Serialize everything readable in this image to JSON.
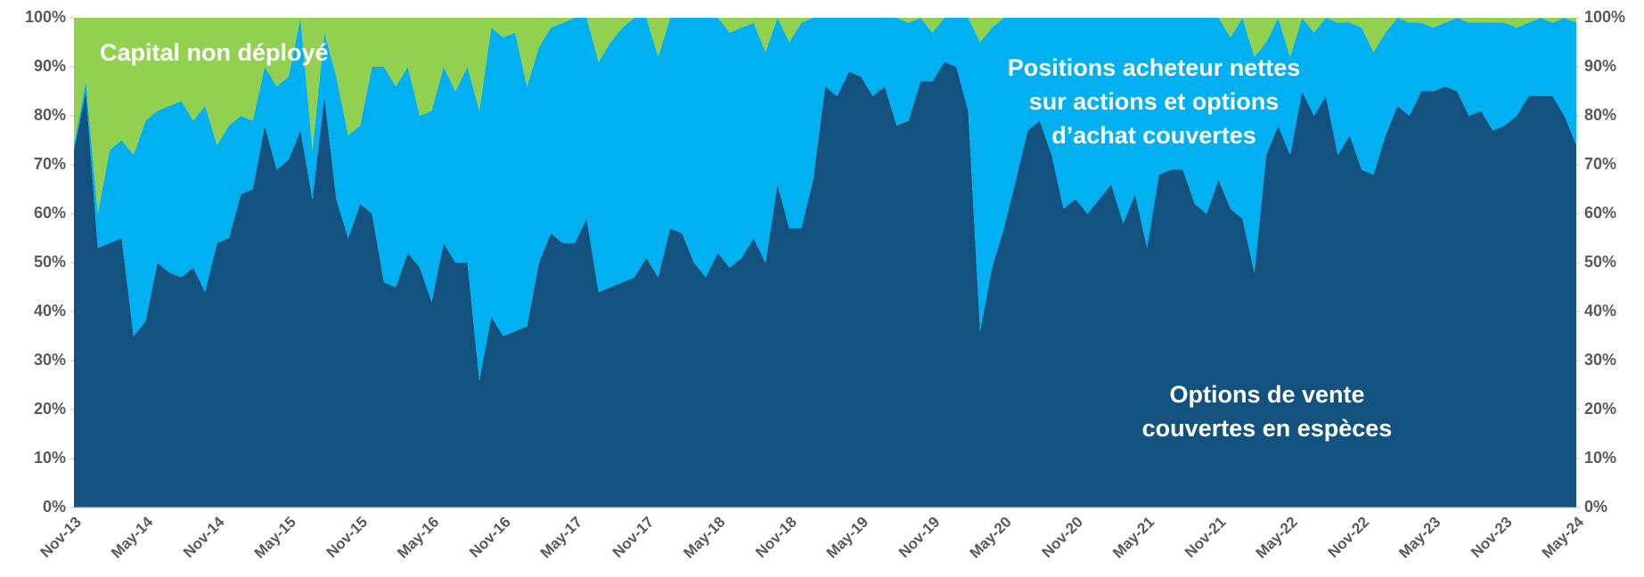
{
  "chart_data": {
    "type": "area",
    "stacked": true,
    "categories": [
      "Nov-13",
      null,
      null,
      null,
      null,
      null,
      "May-14",
      null,
      null,
      null,
      null,
      null,
      "Nov-14",
      null,
      null,
      null,
      null,
      null,
      "May-15",
      null,
      null,
      null,
      null,
      null,
      "Nov-15",
      null,
      null,
      null,
      null,
      null,
      "May-16",
      null,
      null,
      null,
      null,
      null,
      "Nov-16",
      null,
      null,
      null,
      null,
      null,
      "May-17",
      null,
      null,
      null,
      null,
      null,
      "Nov-17",
      null,
      null,
      null,
      null,
      null,
      "May-18",
      null,
      null,
      null,
      null,
      null,
      "Nov-18",
      null,
      null,
      null,
      null,
      null,
      "May-19",
      null,
      null,
      null,
      null,
      null,
      "Nov-19",
      null,
      null,
      null,
      null,
      null,
      "May-20",
      null,
      null,
      null,
      null,
      null,
      "Nov-20",
      null,
      null,
      null,
      null,
      null,
      "May-21",
      null,
      null,
      null,
      null,
      null,
      "Nov-21",
      null,
      null,
      null,
      null,
      null,
      "May-22",
      null,
      null,
      null,
      null,
      null,
      "Nov-22",
      null,
      null,
      null,
      null,
      null,
      "May-23",
      null,
      null,
      null,
      null,
      null,
      "Nov-23",
      null,
      null,
      null,
      null,
      null,
      "May-24"
    ],
    "series": [
      {
        "name": "Options de vente couvertes en espèces",
        "color": "#13527f",
        "values": [
          73,
          85,
          53,
          54,
          55,
          35,
          38,
          50,
          48,
          47,
          49,
          44,
          54,
          55,
          64,
          65,
          78,
          69,
          71,
          77,
          63,
          84,
          63,
          55,
          62,
          60,
          46,
          45,
          52,
          49,
          42,
          54,
          50,
          50,
          26,
          39,
          35,
          36,
          37,
          50,
          56,
          54,
          54,
          59,
          44,
          45,
          46,
          47,
          51,
          47,
          57,
          56,
          50,
          47,
          52,
          49,
          51,
          55,
          50,
          66,
          57,
          57,
          67,
          86,
          84,
          89,
          88,
          84,
          86,
          78,
          79,
          87,
          87,
          91,
          90,
          81,
          36,
          49,
          57,
          67,
          77,
          79,
          72,
          61,
          63,
          60,
          63,
          66,
          58,
          64,
          53,
          68,
          69,
          69,
          62,
          60,
          67,
          61,
          59,
          48,
          72,
          78,
          72,
          85,
          80,
          84,
          72,
          76,
          69,
          68,
          76,
          82,
          80,
          85,
          85,
          86,
          85,
          80,
          81,
          77,
          78,
          80,
          84,
          84,
          84,
          80,
          74
        ]
      },
      {
        "name": "Positions acheteur nettes sur actions et options d’achat couvertes",
        "color": "#00b0f0",
        "values": [
          1,
          2,
          7,
          19,
          20,
          37,
          41,
          31,
          34,
          36,
          30,
          38,
          20,
          23,
          16,
          14,
          12,
          17,
          17,
          23,
          10,
          13,
          25,
          21,
          16,
          30,
          44,
          41,
          38,
          31,
          39,
          36,
          35,
          40,
          55,
          59,
          61,
          61,
          49,
          44,
          42,
          45,
          46,
          41,
          47,
          50,
          52,
          53,
          49,
          45,
          43,
          44,
          50,
          53,
          48,
          48,
          47,
          44,
          43,
          34,
          38,
          42,
          33,
          14,
          16,
          11,
          12,
          16,
          14,
          22,
          20,
          13,
          10,
          9,
          10,
          19,
          59,
          49,
          43,
          33,
          23,
          21,
          28,
          39,
          37,
          40,
          37,
          34,
          42,
          36,
          47,
          32,
          31,
          31,
          38,
          40,
          33,
          35,
          41,
          44,
          23,
          22,
          20,
          15,
          17,
          16,
          27,
          23,
          29,
          25,
          21,
          18,
          19,
          14,
          13,
          13,
          15,
          19,
          18,
          22,
          21,
          18,
          15,
          16,
          15,
          20,
          25
        ]
      },
      {
        "name": "Capital non déployé",
        "color": "#92d050",
        "values": [
          26,
          13,
          40,
          27,
          25,
          28,
          21,
          19,
          18,
          17,
          21,
          18,
          26,
          22,
          20,
          21,
          10,
          14,
          12,
          0,
          27,
          3,
          12,
          24,
          22,
          10,
          10,
          14,
          10,
          20,
          19,
          10,
          15,
          10,
          19,
          2,
          4,
          3,
          14,
          6,
          2,
          1,
          0,
          0,
          9,
          5,
          2,
          0,
          0,
          8,
          0,
          0,
          0,
          0,
          0,
          3,
          2,
          1,
          7,
          0,
          5,
          1,
          0,
          0,
          0,
          0,
          0,
          0,
          0,
          0,
          1,
          0,
          3,
          0,
          0,
          0,
          5,
          2,
          0,
          0,
          0,
          0,
          0,
          0,
          0,
          0,
          0,
          0,
          0,
          0,
          0,
          0,
          0,
          0,
          0,
          0,
          0,
          4,
          0,
          8,
          5,
          0,
          8,
          0,
          3,
          0,
          1,
          1,
          2,
          7,
          3,
          0,
          1,
          1,
          2,
          1,
          0,
          1,
          1,
          1,
          1,
          2,
          1,
          0,
          1,
          0,
          1
        ]
      }
    ],
    "annotations": [
      {
        "lines": [
          "Capital non déployé"
        ]
      },
      {
        "lines": [
          "Positions acheteur nettes",
          "sur actions et options",
          "d’achat couvertes"
        ]
      },
      {
        "lines": [
          "Options de vente",
          "couvertes en espèces"
        ]
      }
    ],
    "ylim": [
      0,
      100
    ],
    "yticks": [
      {
        "value": 0,
        "label": "0%"
      },
      {
        "value": 10,
        "label": "10%"
      },
      {
        "value": 20,
        "label": "20%"
      },
      {
        "value": 30,
        "label": "30%"
      },
      {
        "value": 40,
        "label": "40%"
      },
      {
        "value": 50,
        "label": "50%"
      },
      {
        "value": 60,
        "label": "60%"
      },
      {
        "value": 70,
        "label": "70%"
      },
      {
        "value": 80,
        "label": "80%"
      },
      {
        "value": 90,
        "label": "90%"
      },
      {
        "value": 100,
        "label": "100%"
      }
    ],
    "y2lim": [
      0,
      100
    ],
    "y2ticks": [
      {
        "value": 0,
        "label": "0%"
      },
      {
        "value": 10,
        "label": "10%"
      },
      {
        "value": 20,
        "label": "20%"
      },
      {
        "value": 30,
        "label": "30%"
      },
      {
        "value": 40,
        "label": "40%"
      },
      {
        "value": 50,
        "label": "50%"
      },
      {
        "value": 60,
        "label": "60%"
      },
      {
        "value": 70,
        "label": "70%"
      },
      {
        "value": 80,
        "label": "80%"
      },
      {
        "value": 90,
        "label": "90%"
      },
      {
        "value": 100,
        "label": "100%"
      }
    ],
    "grid": false
  }
}
